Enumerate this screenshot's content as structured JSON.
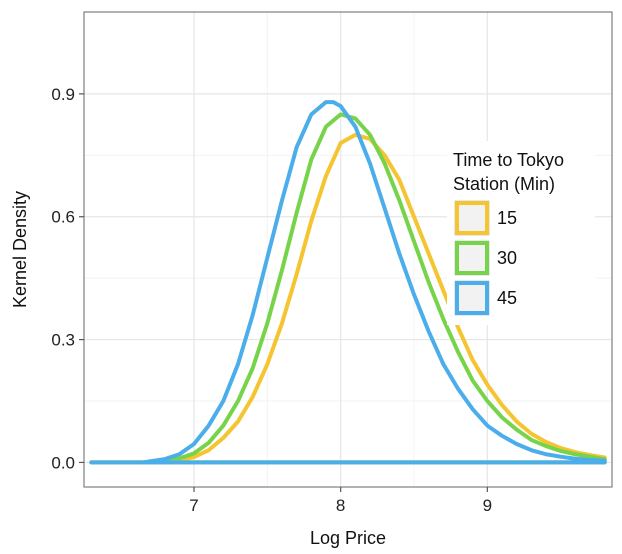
{
  "chart_data": {
    "type": "line",
    "title": "",
    "xlabel": "Log Price",
    "ylabel": "Kernel Density",
    "xlim": [
      6.25,
      9.85
    ],
    "ylim": [
      -0.06,
      1.1
    ],
    "x_ticks": [
      7,
      8,
      9
    ],
    "x_tick_labels": [
      "7",
      "8",
      "9"
    ],
    "y_ticks": [
      0.0,
      0.3,
      0.6,
      0.9
    ],
    "y_tick_labels": [
      "0.0",
      "0.3",
      "0.6",
      "0.9"
    ],
    "grid": true,
    "legend": {
      "title_lines": [
        "Time to Tokyo",
        "Station (Min)"
      ],
      "placement": "right, inside plot"
    },
    "series": [
      {
        "name": "15",
        "color": "#F5C431",
        "x": [
          6.3,
          6.8,
          6.9,
          7.0,
          7.1,
          7.2,
          7.3,
          7.4,
          7.5,
          7.6,
          7.7,
          7.8,
          7.9,
          8.0,
          8.1,
          8.2,
          8.3,
          8.4,
          8.5,
          8.6,
          8.7,
          8.8,
          8.9,
          9.0,
          9.1,
          9.2,
          9.3,
          9.4,
          9.5,
          9.6,
          9.7,
          9.8,
          9.8,
          6.3
        ],
        "y": [
          0.0,
          0.0,
          0.005,
          0.013,
          0.03,
          0.06,
          0.1,
          0.16,
          0.24,
          0.34,
          0.46,
          0.59,
          0.7,
          0.78,
          0.8,
          0.79,
          0.75,
          0.69,
          0.6,
          0.51,
          0.42,
          0.33,
          0.25,
          0.19,
          0.14,
          0.1,
          0.07,
          0.05,
          0.035,
          0.025,
          0.018,
          0.012,
          0.0,
          0.0
        ]
      },
      {
        "name": "30",
        "color": "#77D44A",
        "x": [
          6.3,
          6.75,
          6.9,
          7.0,
          7.1,
          7.2,
          7.3,
          7.4,
          7.5,
          7.6,
          7.7,
          7.8,
          7.9,
          8.0,
          8.1,
          8.2,
          8.3,
          8.4,
          8.5,
          8.6,
          8.7,
          8.8,
          8.9,
          9.0,
          9.1,
          9.2,
          9.3,
          9.4,
          9.5,
          9.6,
          9.7,
          9.8,
          9.8,
          6.3
        ],
        "y": [
          0.0,
          0.0,
          0.01,
          0.022,
          0.048,
          0.09,
          0.15,
          0.23,
          0.34,
          0.47,
          0.61,
          0.74,
          0.82,
          0.85,
          0.84,
          0.8,
          0.73,
          0.64,
          0.54,
          0.44,
          0.35,
          0.27,
          0.2,
          0.15,
          0.11,
          0.08,
          0.055,
          0.04,
          0.028,
          0.02,
          0.014,
          0.008,
          0.0,
          0.0
        ]
      },
      {
        "name": "45",
        "color": "#4BAEEA",
        "x": [
          6.3,
          6.65,
          6.8,
          6.9,
          7.0,
          7.1,
          7.2,
          7.3,
          7.4,
          7.5,
          7.6,
          7.7,
          7.8,
          7.9,
          7.95,
          8.0,
          8.1,
          8.2,
          8.3,
          8.4,
          8.5,
          8.6,
          8.7,
          8.8,
          8.9,
          9.0,
          9.1,
          9.2,
          9.3,
          9.4,
          9.5,
          9.6,
          9.7,
          9.8,
          9.8,
          6.3
        ],
        "y": [
          0.0,
          0.0,
          0.008,
          0.02,
          0.045,
          0.09,
          0.15,
          0.24,
          0.36,
          0.5,
          0.64,
          0.77,
          0.85,
          0.88,
          0.88,
          0.87,
          0.82,
          0.73,
          0.62,
          0.51,
          0.41,
          0.32,
          0.24,
          0.18,
          0.13,
          0.09,
          0.065,
          0.045,
          0.03,
          0.02,
          0.014,
          0.009,
          0.006,
          0.004,
          0.0,
          0.0
        ]
      }
    ]
  }
}
